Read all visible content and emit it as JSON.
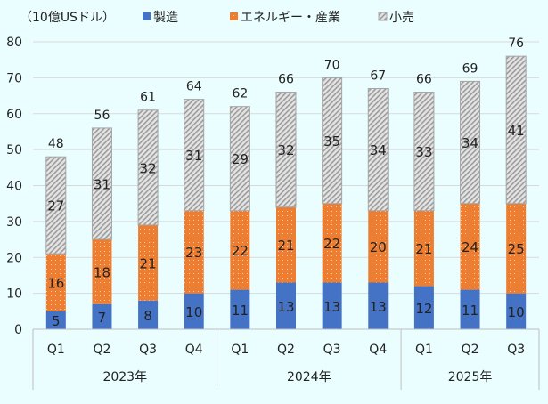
{
  "chart_data": {
    "type": "bar",
    "stacked": true,
    "unit_label": "（10億USドル）",
    "categories": [
      "Q1",
      "Q2",
      "Q3",
      "Q4",
      "Q1",
      "Q2",
      "Q3",
      "Q4",
      "Q1",
      "Q2",
      "Q3"
    ],
    "groups": [
      {
        "label": "2023年",
        "count": 4
      },
      {
        "label": "2024年",
        "count": 4
      },
      {
        "label": "2025年",
        "count": 3
      }
    ],
    "series": [
      {
        "name": "製造",
        "color": "#4472c4",
        "pattern": "solid",
        "values": [
          5,
          7,
          8,
          10,
          11,
          13,
          13,
          13,
          12,
          11,
          10
        ]
      },
      {
        "name": "エネルギー・産業",
        "color": "#ed7d31",
        "pattern": "dots",
        "values": [
          16,
          18,
          21,
          23,
          22,
          21,
          22,
          20,
          21,
          24,
          25
        ]
      },
      {
        "name": "小売",
        "color": "#a5a5a5",
        "pattern": "diagonal-hatch",
        "values": [
          27,
          31,
          32,
          31,
          29,
          32,
          35,
          34,
          33,
          34,
          41
        ]
      }
    ],
    "totals": [
      48,
      56,
      61,
      64,
      62,
      66,
      70,
      67,
      66,
      69,
      76
    ],
    "ylim": [
      0,
      80
    ],
    "yticks": [
      0,
      10,
      20,
      30,
      40,
      50,
      60,
      70,
      80
    ],
    "grid": true,
    "legend": "top"
  }
}
